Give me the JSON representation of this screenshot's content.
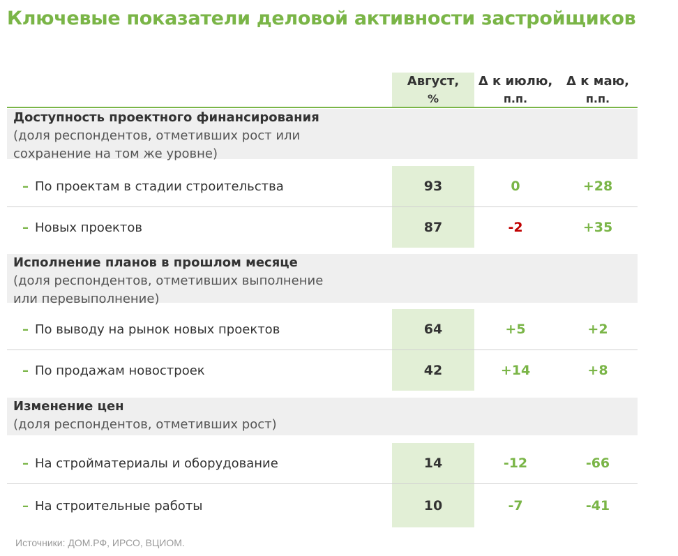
{
  "title": "Ключевые показатели деловой активности застройщиков",
  "columns": {
    "august": {
      "main": "Август,",
      "sub": "%"
    },
    "vs_july": {
      "main": "Δ к июлю,",
      "sub": "п.п."
    },
    "vs_may": {
      "main": "Δ к маю,",
      "sub": "п.п."
    }
  },
  "sections": [
    {
      "title": "Доступность проектного финансирования",
      "subtitle": "(доля респондентов, отметивших рост или сохранение на том же уровне)",
      "rows": [
        {
          "dash": "–",
          "label": "По проектам в стадии строительства",
          "august": "93",
          "vs_july": "0",
          "vs_may": "+28"
        },
        {
          "dash": "–",
          "label": "Новых проектов",
          "august": "87",
          "vs_july": "-2",
          "vs_may": "+35"
        }
      ]
    },
    {
      "title": "Исполнение планов в прошлом месяце",
      "subtitle": "(доля респондентов, отметивших выполнение или перевыполнение)",
      "rows": [
        {
          "dash": "–",
          "label": "По выводу на рынок новых проектов",
          "august": "64",
          "vs_july": "+5",
          "vs_may": "+2"
        },
        {
          "dash": "–",
          "label": "По продажам новостроек",
          "august": "42",
          "vs_july": "+14",
          "vs_may": "+8"
        }
      ]
    },
    {
      "title": "Изменение цен",
      "subtitle": "(доля респондентов, отметивших рост)",
      "rows": [
        {
          "dash": "–",
          "label": "На стройматериалы и оборудование",
          "august": "14",
          "vs_july": "-12",
          "vs_may": "-66"
        },
        {
          "dash": "–",
          "label": "На строительные работы",
          "august": "10",
          "vs_july": "-7",
          "vs_may": "-41"
        }
      ]
    }
  ],
  "source": "Источники: ДОМ.РФ, ИРСО, ВЦИОМ.",
  "colors": {
    "accent_green": "#7ab547",
    "negative_red": "#c00000",
    "highlight_column": "#e2efd6",
    "section_bg": "#efefef"
  }
}
